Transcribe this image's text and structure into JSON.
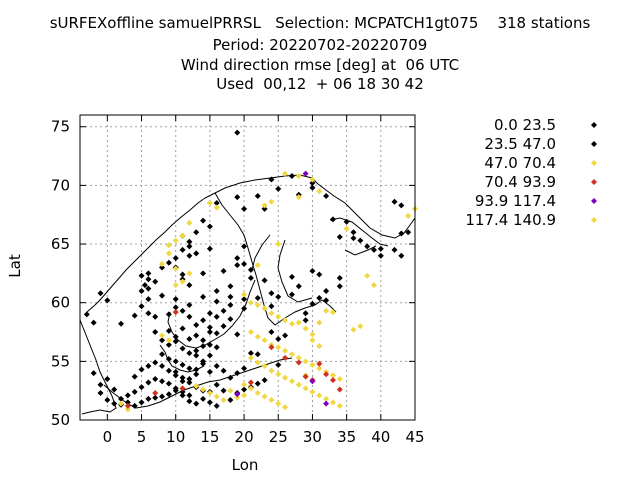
{
  "chart_data": {
    "type": "scatter",
    "title_lines": [
      "sURFEXoffline samuelPRRSL   Selection: MCPATCH1gt075    318 stations",
      "Period: 20220702-20220709",
      "Wind direction rmse [deg] at  06 UTC",
      "Used  00,12  + 06 18 30 42"
    ],
    "xlabel": "Lon",
    "ylabel": "Lat",
    "xlim": [
      -4,
      45
    ],
    "ylim": [
      50,
      76
    ],
    "xticks": [
      0,
      5,
      10,
      15,
      20,
      25,
      30,
      35,
      40,
      45
    ],
    "yticks": [
      50,
      55,
      60,
      65,
      70,
      75
    ],
    "grid": true,
    "legend_position": "right",
    "series": [
      {
        "name": "0.0 23.5",
        "color": "#000000",
        "points": [
          [
            19,
            74.5
          ],
          [
            24,
            70.5
          ],
          [
            27,
            70.8
          ],
          [
            30,
            70.2
          ],
          [
            25,
            69.7
          ],
          [
            16,
            68.5
          ],
          [
            19,
            69
          ],
          [
            20,
            68
          ],
          [
            22,
            69.1
          ],
          [
            23,
            68
          ],
          [
            14,
            67
          ],
          [
            15,
            66.5
          ],
          [
            13,
            66
          ],
          [
            12,
            65.2
          ],
          [
            12,
            64.8
          ],
          [
            11,
            64.5
          ],
          [
            12,
            64
          ],
          [
            10,
            63.8
          ],
          [
            9,
            63.4
          ],
          [
            8,
            63
          ],
          [
            6,
            62.5
          ],
          [
            6,
            62
          ],
          [
            5.5,
            61.5
          ],
          [
            5,
            61
          ],
          [
            6,
            61.2
          ],
          [
            7,
            61.8
          ],
          [
            10,
            63
          ],
          [
            11,
            62.4
          ],
          [
            14,
            62.5
          ],
          [
            17,
            62.7
          ],
          [
            19,
            63.8
          ],
          [
            20,
            63.3
          ],
          [
            14,
            60.5
          ],
          [
            16,
            61
          ],
          [
            18,
            60.5
          ],
          [
            20,
            60.3
          ],
          [
            22,
            60.4
          ],
          [
            24,
            60.8
          ],
          [
            25,
            60.5
          ],
          [
            23,
            61.9
          ],
          [
            27,
            62.2
          ],
          [
            28,
            61.4
          ],
          [
            30,
            62.7
          ],
          [
            31,
            62.4
          ],
          [
            32,
            61
          ],
          [
            34,
            61.4
          ],
          [
            34,
            62.1
          ],
          [
            39,
            64.5
          ],
          [
            40,
            64
          ],
          [
            42,
            64.5
          ],
          [
            43,
            64
          ],
          [
            44,
            66
          ],
          [
            40,
            64.6
          ],
          [
            37,
            65.3
          ],
          [
            36,
            66
          ],
          [
            35,
            66.9
          ],
          [
            33,
            67.1
          ],
          [
            32,
            69.1
          ],
          [
            30,
            69.8
          ],
          [
            28,
            69.2
          ],
          [
            0,
            60.2
          ],
          [
            -1,
            60.8
          ],
          [
            -3,
            59
          ],
          [
            -2,
            58.3
          ],
          [
            2,
            58.2
          ],
          [
            4,
            58.9
          ],
          [
            5,
            59.7
          ],
          [
            6,
            59.1
          ],
          [
            7,
            58.8
          ],
          [
            9,
            59
          ],
          [
            10,
            59.6
          ],
          [
            11,
            59.3
          ],
          [
            12,
            58.8
          ],
          [
            13,
            58.1
          ],
          [
            14,
            58.5
          ],
          [
            15,
            57.5
          ],
          [
            16,
            57.4
          ],
          [
            17,
            58
          ],
          [
            18,
            58.6
          ],
          [
            19,
            57.3
          ],
          [
            8,
            56.8
          ],
          [
            9,
            56.4
          ],
          [
            10,
            56.7
          ],
          [
            11,
            56.1
          ],
          [
            12,
            55.7
          ],
          [
            13,
            55.5
          ],
          [
            14,
            55
          ],
          [
            15,
            55.5
          ],
          [
            8,
            55.6
          ],
          [
            9,
            55.2
          ],
          [
            10,
            55
          ],
          [
            11,
            54.7
          ],
          [
            12,
            54.4
          ],
          [
            13,
            54.3
          ],
          [
            9,
            54.2
          ],
          [
            10,
            53.8
          ],
          [
            11,
            53.6
          ],
          [
            12,
            53.2
          ],
          [
            13,
            52.8
          ],
          [
            14,
            52.5
          ],
          [
            15,
            52.4
          ],
          [
            16,
            53
          ],
          [
            6,
            53.2
          ],
          [
            7,
            53.5
          ],
          [
            5,
            52.8
          ],
          [
            4,
            52.4
          ],
          [
            3,
            51.5
          ],
          [
            4,
            51.2
          ],
          [
            5,
            51.5
          ],
          [
            6,
            51.8
          ],
          [
            7,
            51.9
          ],
          [
            8,
            52
          ],
          [
            9,
            52.2
          ],
          [
            10,
            52.5
          ],
          [
            11,
            52.4
          ],
          [
            12,
            51.6
          ],
          [
            13,
            51.4
          ],
          [
            14,
            51.8
          ],
          [
            15,
            51.5
          ],
          [
            16,
            51.2
          ],
          [
            -1,
            53
          ],
          [
            -2,
            54
          ],
          [
            0,
            51.7
          ],
          [
            1,
            51.4
          ],
          [
            2,
            51.3
          ],
          [
            17,
            52.5
          ],
          [
            18,
            53.6
          ],
          [
            19,
            54
          ],
          [
            20,
            54.4
          ],
          [
            21,
            55.7
          ],
          [
            22,
            55.6
          ],
          [
            25,
            54.7
          ],
          [
            25,
            56.9
          ],
          [
            24,
            57.5
          ],
          [
            26,
            57.2
          ],
          [
            29,
            59.1
          ],
          [
            30,
            59.9
          ],
          [
            31,
            60.4
          ],
          [
            32,
            60.2
          ],
          [
            29,
            58.5
          ],
          [
            5,
            62.3
          ],
          [
            13,
            64.2
          ],
          [
            11,
            65.7
          ],
          [
            15,
            64.6
          ],
          [
            20,
            64.8
          ],
          [
            19,
            63.2
          ],
          [
            21,
            62.8
          ],
          [
            18,
            61.4
          ],
          [
            12,
            61.5
          ],
          [
            11,
            62
          ]
        ]
      },
      {
        "name": "23.5 47.0",
        "color": "#000000",
        "points": [
          [
            42,
            68.6
          ],
          [
            43,
            68.3
          ],
          [
            43,
            65.9
          ],
          [
            36,
            65.5
          ],
          [
            38,
            64.8
          ],
          [
            34,
            65.6
          ],
          [
            21,
            62.1
          ],
          [
            27,
            60.7
          ],
          [
            24,
            59.7
          ],
          [
            20,
            59.5
          ],
          [
            16,
            60.1
          ],
          [
            15,
            59.1
          ],
          [
            12,
            59.8
          ],
          [
            10,
            60.3
          ],
          [
            8,
            60.6
          ],
          [
            6,
            60.3
          ],
          [
            7,
            57.5
          ],
          [
            11,
            57.8
          ],
          [
            13,
            57.2
          ],
          [
            14,
            56.3
          ],
          [
            15,
            56.4
          ],
          [
            16,
            56.2
          ],
          [
            12,
            56.9
          ],
          [
            10,
            57.1
          ],
          [
            9,
            57.6
          ],
          [
            8,
            54.6
          ],
          [
            10,
            54.1
          ],
          [
            11,
            53.3
          ],
          [
            12,
            52.1
          ],
          [
            13,
            53.9
          ],
          [
            14,
            54.8
          ],
          [
            15,
            54.1
          ],
          [
            16,
            54.6
          ],
          [
            17,
            54.2
          ],
          [
            18,
            51.7
          ],
          [
            19,
            52.3
          ],
          [
            20,
            52.6
          ],
          [
            21,
            52.8
          ],
          [
            22,
            53.1
          ],
          [
            23,
            53.4
          ],
          [
            3,
            52.1
          ],
          [
            2,
            51.8
          ],
          [
            1,
            52.6
          ],
          [
            0,
            53.5
          ],
          [
            -1,
            52.3
          ],
          [
            4,
            53.7
          ],
          [
            5,
            54.3
          ],
          [
            6,
            54.6
          ],
          [
            7,
            54.9
          ],
          [
            8,
            53.3
          ],
          [
            9,
            53.1
          ],
          [
            10,
            52.7
          ],
          [
            11,
            52.1
          ],
          [
            12,
            53.5
          ],
          [
            13,
            55.9
          ],
          [
            14,
            56.8
          ],
          [
            15,
            57.9
          ],
          [
            16,
            58.8
          ],
          [
            17,
            59.3
          ],
          [
            18,
            59.8
          ]
        ]
      },
      {
        "name": "47.0 70.4",
        "color": "#f0d840",
        "points": [
          [
            26,
            71
          ],
          [
            30,
            70.5
          ],
          [
            31,
            69.5
          ],
          [
            28,
            69
          ],
          [
            24,
            68.6
          ],
          [
            23,
            68.3
          ],
          [
            16,
            68.1
          ],
          [
            15,
            68.5
          ],
          [
            12,
            66.8
          ],
          [
            11,
            65.7
          ],
          [
            10,
            65.3
          ],
          [
            9,
            64.9
          ],
          [
            8,
            63.3
          ],
          [
            44,
            67.4
          ],
          [
            35,
            66.3
          ],
          [
            38,
            62.3
          ],
          [
            39,
            61.5
          ],
          [
            25,
            65
          ],
          [
            22,
            63.2
          ],
          [
            20,
            60.7
          ],
          [
            21,
            60
          ],
          [
            22,
            59.8
          ],
          [
            23,
            59.5
          ],
          [
            24,
            59.1
          ],
          [
            25,
            58.8
          ],
          [
            26,
            58.5
          ],
          [
            27,
            58.2
          ],
          [
            28,
            58.3
          ],
          [
            29,
            57.8
          ],
          [
            30,
            57.3
          ],
          [
            31,
            58.3
          ],
          [
            32,
            59.3
          ],
          [
            33,
            59.2
          ],
          [
            36,
            57.7
          ],
          [
            37,
            58
          ],
          [
            21,
            57.5
          ],
          [
            22,
            57.1
          ],
          [
            23,
            56.8
          ],
          [
            24,
            56.4
          ],
          [
            25,
            56.2
          ],
          [
            26,
            55.9
          ],
          [
            27,
            55.6
          ],
          [
            28,
            55.3
          ],
          [
            29,
            55
          ],
          [
            30,
            54.7
          ],
          [
            31,
            54.4
          ],
          [
            32,
            54.1
          ],
          [
            33,
            53.8
          ],
          [
            34,
            53.5
          ],
          [
            21,
            55.3
          ],
          [
            22,
            54.9
          ],
          [
            23,
            54.6
          ],
          [
            24,
            54.2
          ],
          [
            25,
            53.9
          ],
          [
            26,
            53.6
          ],
          [
            27,
            53.3
          ],
          [
            28,
            53
          ],
          [
            29,
            52.7
          ],
          [
            30,
            52.4
          ],
          [
            31,
            52.1
          ],
          [
            32,
            51.8
          ],
          [
            33,
            51.5
          ],
          [
            34,
            51.2
          ],
          [
            20,
            53
          ],
          [
            21,
            52.7
          ],
          [
            22,
            52.3
          ],
          [
            23,
            52
          ],
          [
            24,
            51.7
          ],
          [
            25,
            51.4
          ],
          [
            26,
            51.1
          ],
          [
            9,
            64.2
          ],
          [
            10,
            62.9
          ],
          [
            12,
            62.5
          ],
          [
            11,
            61.8
          ],
          [
            10,
            61.5
          ],
          [
            8,
            57.2
          ],
          [
            9,
            56.8
          ],
          [
            13,
            52.9
          ],
          [
            14,
            52.6
          ],
          [
            15,
            52.3
          ],
          [
            16,
            52
          ],
          [
            17,
            51.7
          ],
          [
            18,
            52.5
          ],
          [
            19,
            51.9
          ],
          [
            20,
            52.1
          ],
          [
            2,
            51.4
          ],
          [
            3,
            50.9
          ],
          [
            29,
            53.8
          ],
          [
            30,
            56.8
          ],
          [
            31,
            56.3
          ]
        ]
      },
      {
        "name": "70.4 93.9",
        "color": "#d03020",
        "points": [
          [
            10,
            59.2
          ],
          [
            11,
            52.7
          ],
          [
            7,
            52.3
          ],
          [
            3,
            51.2
          ],
          [
            21,
            53.2
          ],
          [
            26,
            55.3
          ],
          [
            28,
            54.9
          ],
          [
            29,
            53.7
          ],
          [
            30,
            53.4
          ],
          [
            31,
            54.8
          ],
          [
            32,
            53.9
          ],
          [
            33,
            53.4
          ],
          [
            34,
            52.6
          ],
          [
            24,
            56.2
          ]
        ]
      },
      {
        "name": "93.9 117.4",
        "color": "#8000c0",
        "points": [
          [
            29,
            71
          ],
          [
            19,
            52.2
          ],
          [
            30,
            53.3
          ],
          [
            32,
            51.4
          ]
        ]
      },
      {
        "name": "117.4 140.9",
        "color": "#f0d840",
        "points": [
          [
            28,
            70.8
          ],
          [
            45,
            68
          ]
        ]
      }
    ]
  }
}
